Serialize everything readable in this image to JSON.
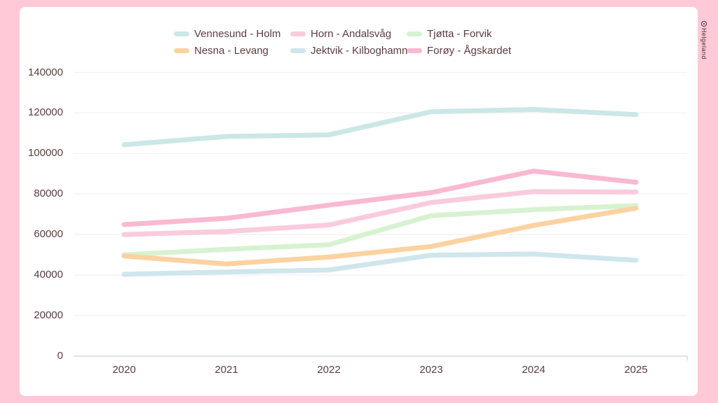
{
  "page": {
    "frame_color": "#ffc9d8",
    "card_color": "#ffffff",
    "text_color": "#5b3c3e",
    "gridline_color": "#f3f3f3",
    "axis_color": "#d9d9d9"
  },
  "logo": {
    "text": "Helgeland"
  },
  "chart_data": {
    "type": "line",
    "title": "",
    "xlabel": "",
    "ylabel": "",
    "x": [
      "2020",
      "2021",
      "2022",
      "2023",
      "2024",
      "2025"
    ],
    "yticks": [
      "0",
      "20000",
      "40000",
      "60000",
      "80000",
      "100000",
      "120000",
      "140000"
    ],
    "ylim": [
      0,
      140000
    ],
    "ytick_step": 20000,
    "grid": true,
    "legend_position": "top",
    "legend_rows": [
      [
        0,
        1,
        2
      ],
      [
        3,
        4,
        5
      ]
    ],
    "series": [
      {
        "name": "Vennesund - Holm",
        "color": "#cbe7e6",
        "values": [
          104300,
          108400,
          109200,
          120600,
          121700,
          119200
        ]
      },
      {
        "name": "Horn - Andalsvåg",
        "color": "#f9cbdd",
        "values": [
          60000,
          61500,
          64700,
          75800,
          81200,
          81000
        ]
      },
      {
        "name": "Tjøtta - Forvik",
        "color": "#d7f2d0",
        "values": [
          50000,
          52700,
          55000,
          69300,
          72300,
          74300
        ]
      },
      {
        "name": "Nesna - Levang",
        "color": "#fbd2a1",
        "values": [
          49400,
          45500,
          48900,
          54100,
          64500,
          73000
        ]
      },
      {
        "name": "Jektvik - Kilboghamn",
        "color": "#cfe6ec",
        "values": [
          40400,
          41500,
          42500,
          49800,
          50400,
          47300
        ]
      },
      {
        "name": "Forøy - Ågskardet",
        "color": "#f9b9d0",
        "values": [
          64900,
          68000,
          74500,
          80700,
          91300,
          85800
        ]
      }
    ]
  }
}
